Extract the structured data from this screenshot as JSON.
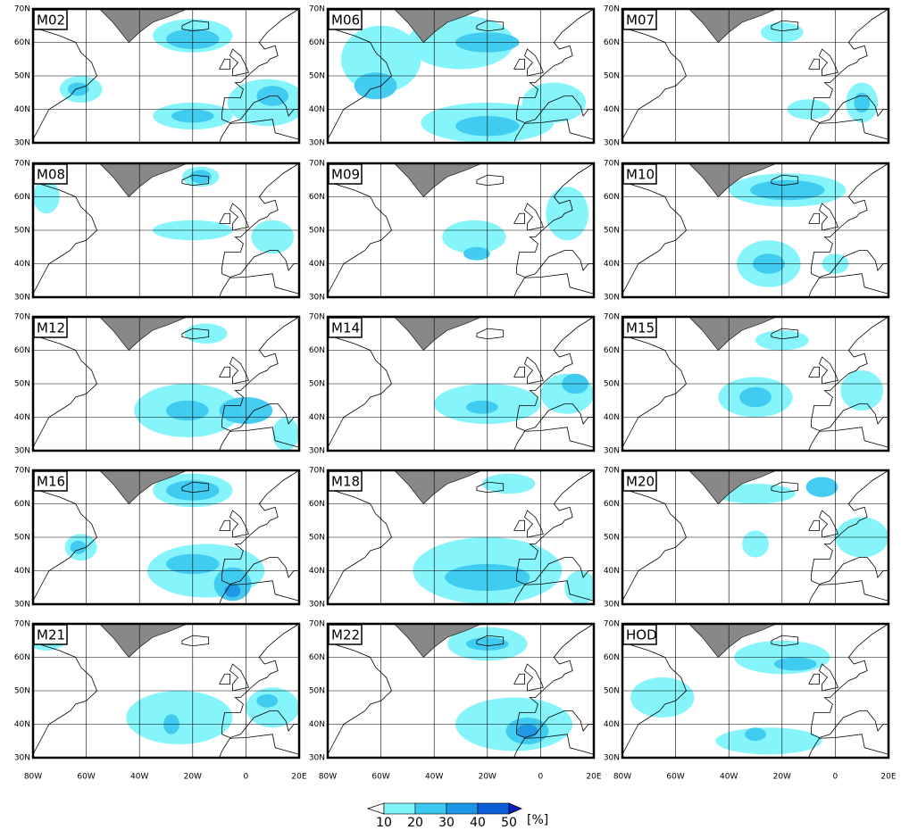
{
  "panels": [
    {
      "label": "M02"
    },
    {
      "label": "M06"
    },
    {
      "label": "M07"
    },
    {
      "label": "M08"
    },
    {
      "label": "M09"
    },
    {
      "label": "M10"
    },
    {
      "label": "M12"
    },
    {
      "label": "M14"
    },
    {
      "label": "M15"
    },
    {
      "label": "M16"
    },
    {
      "label": "M18"
    },
    {
      "label": "M20"
    },
    {
      "label": "M21"
    },
    {
      "label": "M22"
    },
    {
      "label": "HOD"
    }
  ],
  "lat_range": [
    30,
    70
  ],
  "lon_range": [
    -80,
    20
  ],
  "lat_ticks": [
    {
      "value": 70,
      "label": "70N"
    },
    {
      "value": 60,
      "label": "60N"
    },
    {
      "value": 50,
      "label": "50N"
    },
    {
      "value": 40,
      "label": "40N"
    },
    {
      "value": 30,
      "label": "30N"
    }
  ],
  "lon_ticks": [
    {
      "value": -80,
      "label": "80W"
    },
    {
      "value": -60,
      "label": "60W"
    },
    {
      "value": -40,
      "label": "40W"
    },
    {
      "value": -20,
      "label": "20W"
    },
    {
      "value": 0,
      "label": "0"
    },
    {
      "value": 20,
      "label": "20E"
    }
  ],
  "colorbar": {
    "levels": [
      10,
      20,
      30,
      40,
      50
    ],
    "unit": "[%]",
    "colors": [
      "#7ff4fb",
      "#3cc9f0",
      "#1e96e6",
      "#0a5fd8",
      "#0a1fc8"
    ]
  }
}
